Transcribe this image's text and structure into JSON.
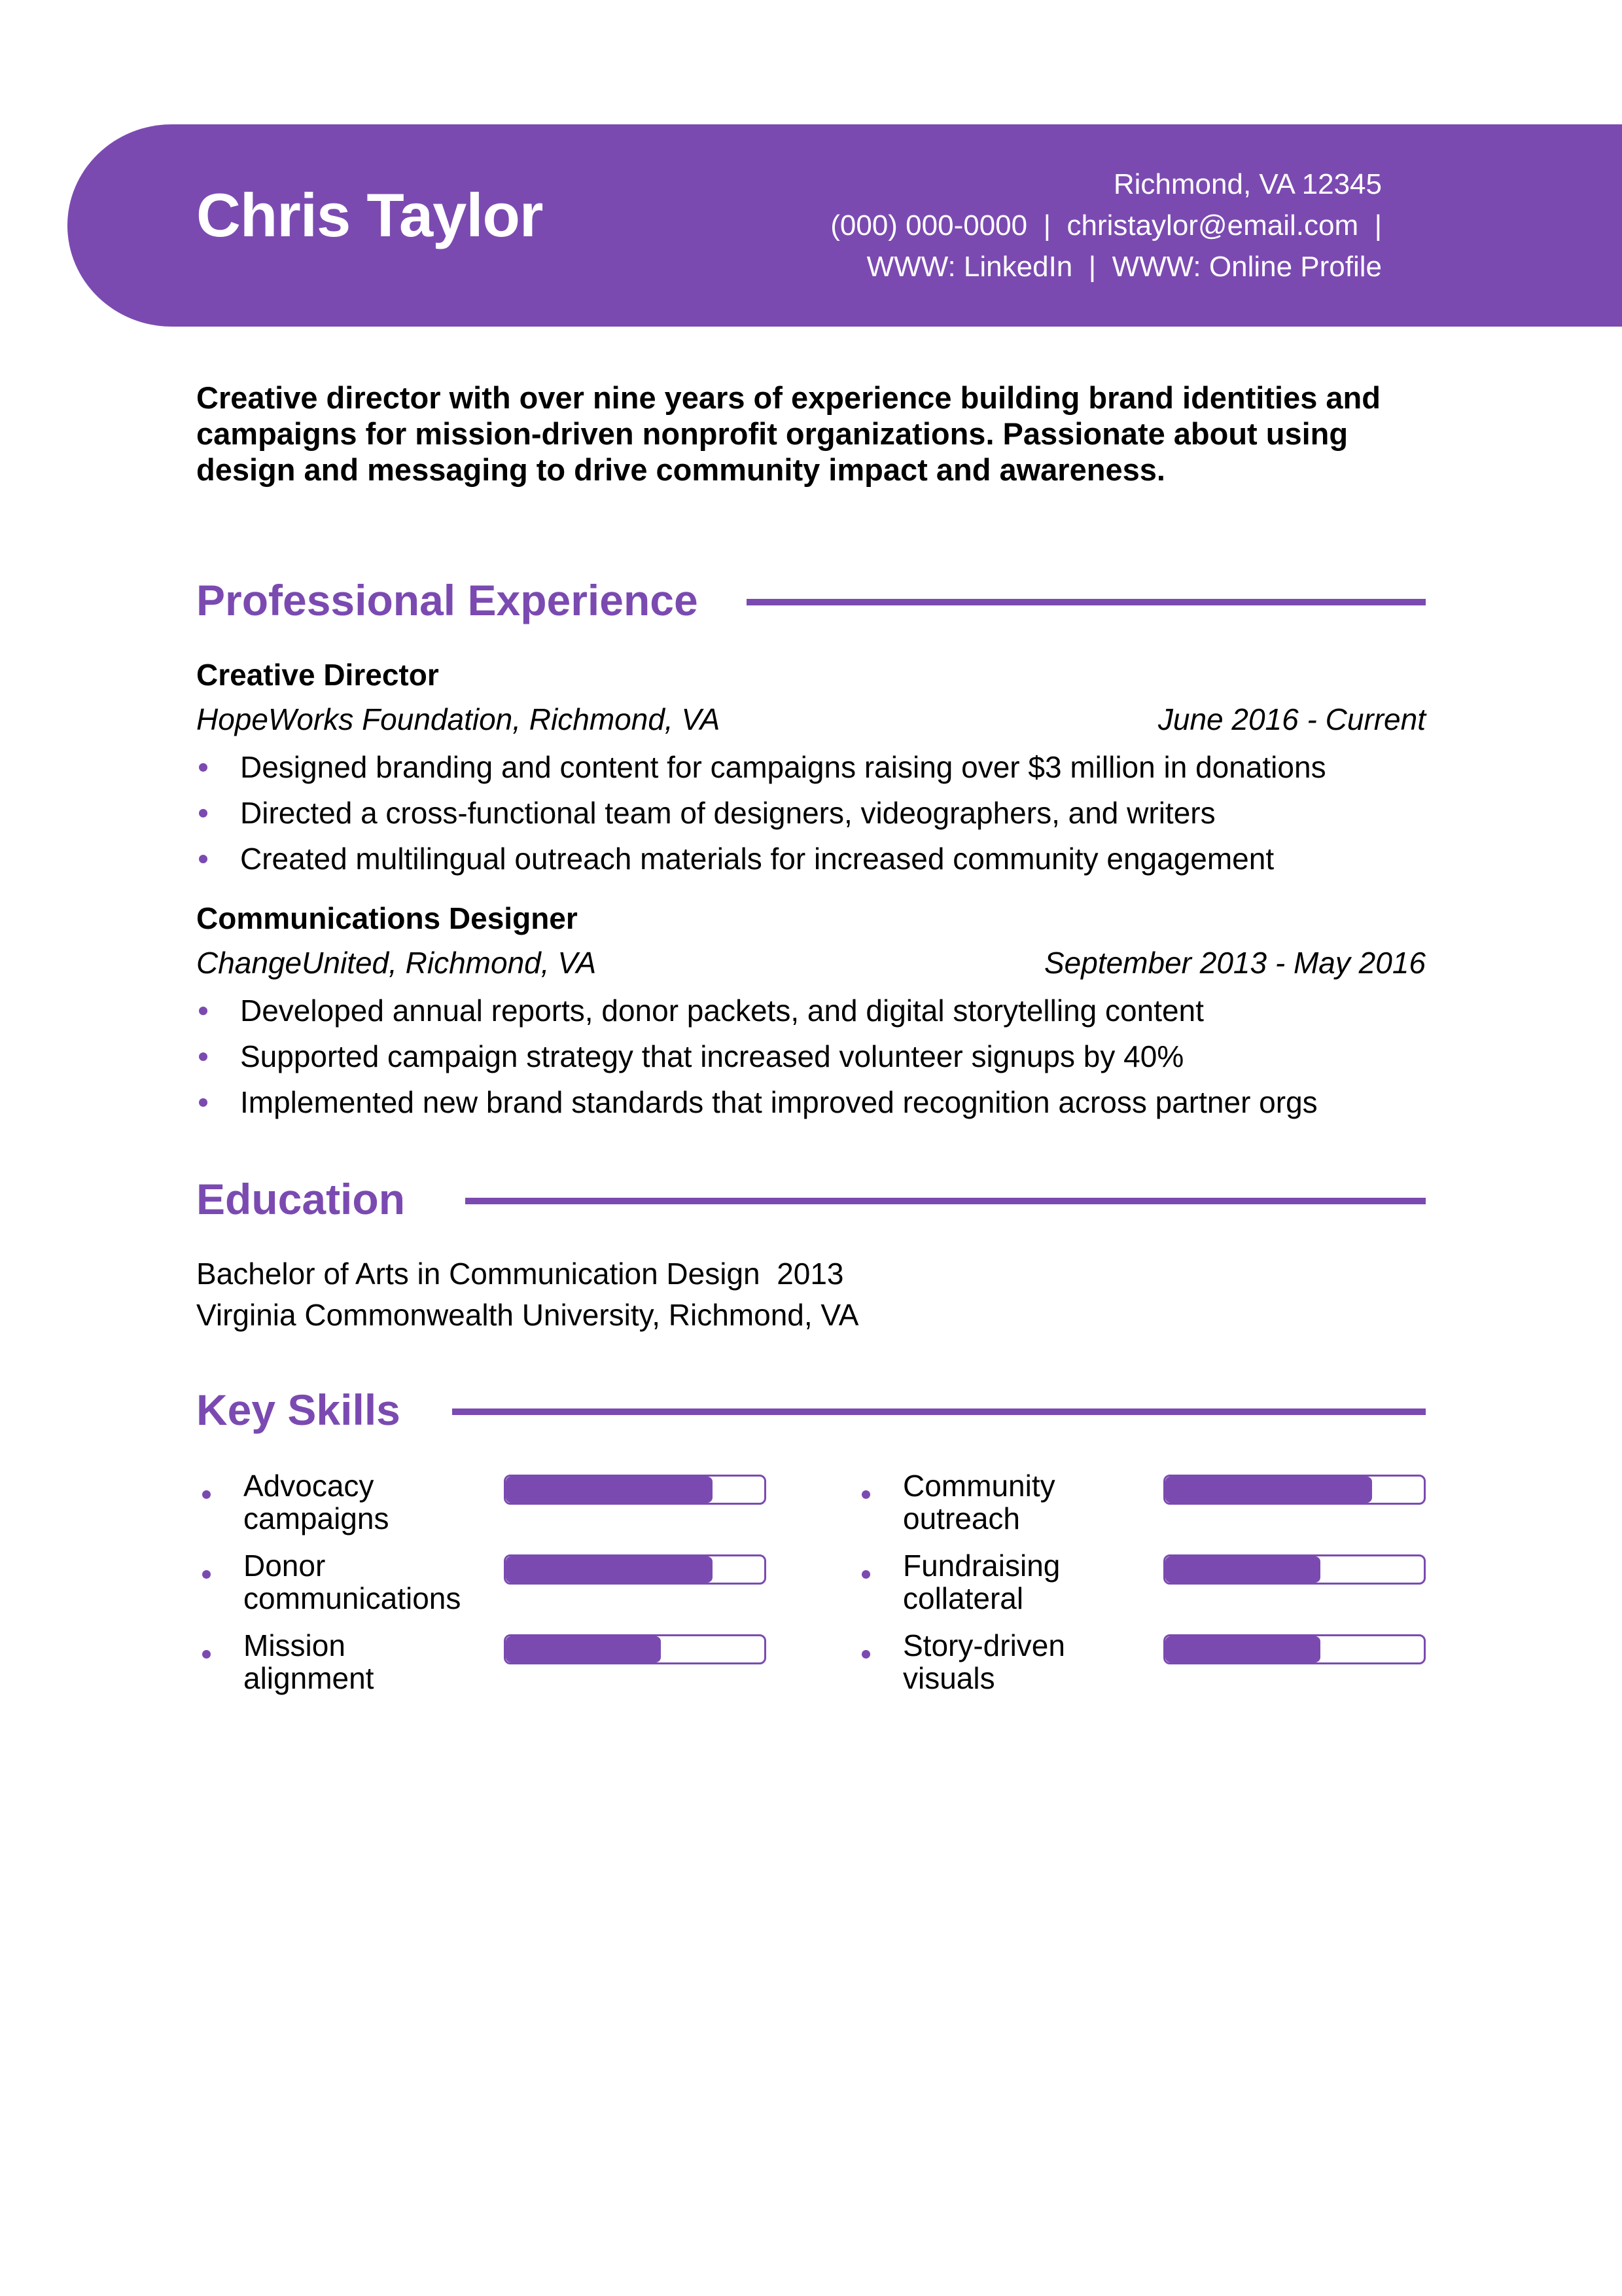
{
  "header": {
    "name": "Chris Taylor",
    "address": "Richmond, VA 12345",
    "phone": "(000) 000-0000",
    "email": "christaylor@email.com",
    "linkedin": "WWW: LinkedIn",
    "profile": "WWW: Online Profile",
    "sep": "|"
  },
  "summary": "Creative director with over nine years of experience building brand identities and campaigns for mission-driven nonprofit organizations. Passionate about using design and messaging to drive community impact and awareness.",
  "accent_color": "#7b4ab1",
  "experience": {
    "heading": "Professional Experience",
    "jobs": [
      {
        "title": "Creative Director",
        "company": "HopeWorks Foundation, Richmond, VA",
        "dates": "June 2016 - Current",
        "bullets": [
          "Designed branding and content for campaigns raising over $3 million in donations",
          "Directed a cross-functional team of designers, videographers, and writers",
          "Created multilingual outreach materials for increased community engagement"
        ]
      },
      {
        "title": "Communications Designer",
        "company": "ChangeUnited, Richmond, VA",
        "dates": "September 2013 - May 2016",
        "bullets": [
          "Developed annual reports, donor packets, and digital storytelling content",
          "Supported campaign strategy that increased volunteer signups by 40%",
          "Implemented new brand standards that improved recognition across partner orgs"
        ]
      }
    ]
  },
  "education": {
    "heading": "Education",
    "degree": "Bachelor of Arts in Communication Design",
    "year": "2013",
    "school": "Virginia Commonwealth University, Richmond, VA"
  },
  "skills": {
    "heading": "Key Skills",
    "items": [
      {
        "line1": "Advocacy",
        "line2": "campaigns",
        "level": 0.8
      },
      {
        "line1": "Community",
        "line2": "outreach",
        "level": 0.8
      },
      {
        "line1": "Donor",
        "line2": "communications",
        "level": 0.8
      },
      {
        "line1": "Fundraising",
        "line2": "collateral",
        "level": 0.6
      },
      {
        "line1": "Mission",
        "line2": "alignment",
        "level": 0.6
      },
      {
        "line1": "Story-driven",
        "line2": "visuals",
        "level": 0.6
      }
    ]
  }
}
